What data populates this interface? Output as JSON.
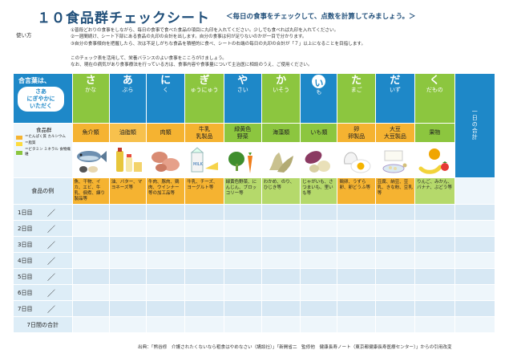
{
  "header": {
    "title": "１０食品群チェックシート",
    "subtitle": "＜毎日の食事をチェックして、点数を計算してみましょう。＞"
  },
  "howto": {
    "label": "使い方",
    "lines": [
      "①普段どおりの食事をしながら、毎日の食事で食べた食品の項目に丸印を入れてください。少しでも食べれば丸印を入れてください。",
      "②一週間続け、シート下部にある食品の丸印の合計を出します。自分の食事は何が足りないのかが一目で分かります。",
      "③自分の食事傾向を把握したら、次は不足しがちな食品を積極的に食べ、シートの右端の毎日の丸印の合計が「７」以上になることを目指します。"
    ],
    "note_lines": [
      "このチェック表を活用して、栄養バランスのよい食事をこころがけましょう。",
      "なお、現在の病気があり食事療法を行っている方は、食事内容や食事量について主治医に相談のうえ、ご使用ください。"
    ]
  },
  "sheet": {
    "mnemonic_label": "合言葉は、",
    "mnemonic_bubble": "さあ\nにぎやかに\nいただく",
    "legend": {
      "title": "食品群",
      "items": [
        {
          "label": "＝たんぱく質 カルシウム",
          "color": "#f5b331"
        },
        {
          "label": "＝脂質",
          "color": "#fddb3d"
        },
        {
          "label": "＝ビタミン ミネラル 食物繊維",
          "color": "#8cc63f"
        }
      ]
    },
    "examples_label": "食品の例",
    "total_label": "7日間の合計",
    "daily_total_label": "一日の合計",
    "categories": [
      {
        "big": "さ",
        "rest": "かな",
        "group": "魚介類",
        "example": "魚、干物、イカ、エビ、牛乳、佃煮、練り製品等"
      },
      {
        "big": "あ",
        "rest": "ぶら",
        "group": "油脂類",
        "example": "油、バター、マヨネーズ等"
      },
      {
        "big": "に",
        "rest": "く",
        "group": "肉類",
        "example": "牛肉、豚肉、鶏肉、ウインナー等の加工品等"
      },
      {
        "big": "ぎ",
        "rest": "ゅうにゅう",
        "group": "牛乳\n乳製品",
        "example": "牛乳、チーズ、ヨーグルト等"
      },
      {
        "big": "や",
        "rest": "さい",
        "group": "緑黄色\n野菜",
        "example": "緑黄色野菜、にんじん、ブロッコリー等"
      },
      {
        "big": "か",
        "rest": "いそう",
        "group": "海藻類",
        "example": "わかめ、のり、ひじき等"
      },
      {
        "big": "い",
        "rest": "も",
        "group": "いも類",
        "example": "じゃがいも、さつまいも、里いも等"
      },
      {
        "big": "た",
        "rest": "まご",
        "group": "卵\n卵製品",
        "example": "鶏卵、うずら卵、卵どうふ等"
      },
      {
        "big": "だ",
        "rest": "いず",
        "group": "大豆\n大豆製品",
        "example": "豆腐、納豆、豆乳、きな粉、豆乳等"
      },
      {
        "big": "く",
        "rest": "だもの",
        "group": "果物",
        "example": "りんご、みかん、バナナ、ぶどう等"
      }
    ],
    "days": [
      "1日目",
      "2日目",
      "3日目",
      "4日目",
      "5日目",
      "6日目",
      "7日目"
    ]
  },
  "footer": {
    "source": "出典：「熊谷修　介護されたくないなら粗食はやめなさい（講談社）」「新開省二　監修他　健康長寿ノート（東京都健康長寿医療センター）」からの引用改変"
  }
}
